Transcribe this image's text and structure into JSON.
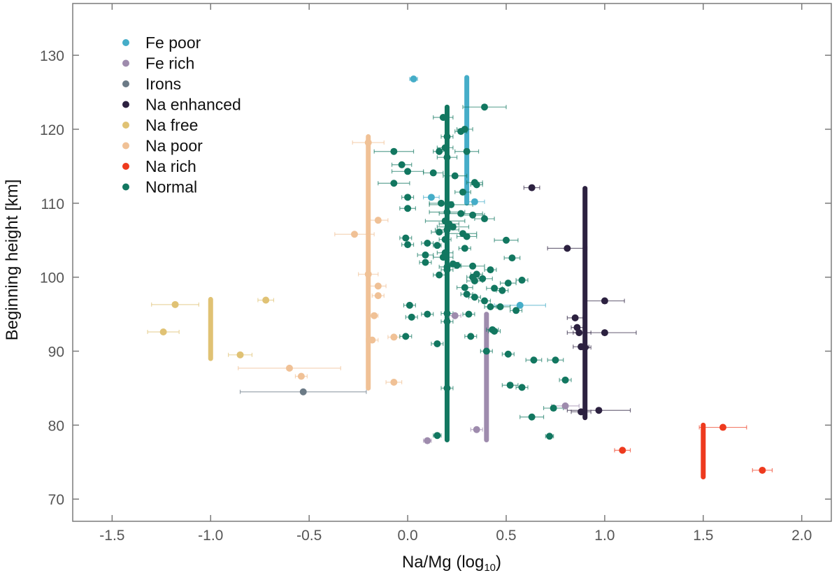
{
  "chart_data": {
    "type": "scatter",
    "xlabel_main": "Na/Mg (log",
    "xlabel_sub": "10",
    "xlabel_close": ")",
    "ylabel": "Beginning height [km]",
    "xlim": [
      -1.7,
      2.15
    ],
    "ylim": [
      67,
      137
    ],
    "xticks": [
      -1.5,
      -1.0,
      -0.5,
      0.0,
      0.5,
      1.0,
      1.5,
      2.0
    ],
    "xtick_labels": [
      "-1.5",
      "-1.0",
      "-0.5",
      "0.0",
      "0.5",
      "1.0",
      "1.5",
      "2.0"
    ],
    "yticks": [
      70,
      80,
      90,
      100,
      110,
      120,
      130
    ],
    "ytick_labels": [
      "70",
      "80",
      "90",
      "100",
      "110",
      "120",
      "130"
    ],
    "legend_position": "top-left",
    "series": [
      {
        "name": "Fe poor",
        "color": "#45adc8",
        "points": [
          [
            0.03,
            126.8,
            0.02
          ],
          [
            0.12,
            110.8,
            0.04
          ],
          [
            0.34,
            110.2,
            0.05
          ],
          [
            0.57,
            96.2,
            0.13
          ]
        ],
        "bar": {
          "x": 0.3,
          "ymin": 110,
          "ymax": 127
        }
      },
      {
        "name": "Fe rich",
        "color": "#9e8bad",
        "points": [
          [
            0.1,
            77.9,
            0.02
          ],
          [
            0.24,
            94.8,
            0.03
          ],
          [
            0.35,
            79.4,
            0.03
          ],
          [
            0.8,
            82.6,
            0.07
          ]
        ],
        "bar": {
          "x": 0.4,
          "ymin": 78,
          "ymax": 95
        }
      },
      {
        "name": "Irons",
        "color": "#6b7a86",
        "points": [
          [
            -0.53,
            84.5,
            0.32
          ]
        ],
        "bar": null
      },
      {
        "name": "Na enhanced",
        "color": "#2c2140",
        "points": [
          [
            0.63,
            112.1,
            0.04
          ],
          [
            0.81,
            103.9,
            0.1
          ],
          [
            0.85,
            94.5,
            0.04
          ],
          [
            0.86,
            93.2,
            0.03
          ],
          [
            0.87,
            92.5,
            0.06
          ],
          [
            0.88,
            90.6,
            0.04
          ],
          [
            0.9,
            90.5,
            0.03
          ],
          [
            1.0,
            96.8,
            0.1
          ],
          [
            1.0,
            92.5,
            0.16
          ],
          [
            0.88,
            81.8,
            0.05
          ],
          [
            0.97,
            82.0,
            0.16
          ]
        ],
        "bar": {
          "x": 0.9,
          "ymin": 81,
          "ymax": 112
        }
      },
      {
        "name": "Na free",
        "color": "#e0c274",
        "points": [
          [
            -1.18,
            96.3,
            0.12
          ],
          [
            -1.24,
            92.6,
            0.08
          ],
          [
            -0.72,
            96.9,
            0.04
          ],
          [
            -0.85,
            89.5,
            0.06
          ]
        ],
        "bar": {
          "x": -1.0,
          "ymin": 89,
          "ymax": 97
        }
      },
      {
        "name": "Na poor",
        "color": "#f0c196",
        "points": [
          [
            -0.2,
            118.2,
            0.08
          ],
          [
            -0.15,
            107.7,
            0.05
          ],
          [
            -0.27,
            105.8,
            0.1
          ],
          [
            -0.2,
            100.4,
            0.05
          ],
          [
            -0.15,
            98.8,
            0.04
          ],
          [
            -0.15,
            97.5,
            0.03
          ],
          [
            -0.17,
            94.8,
            0.02
          ],
          [
            -0.18,
            91.5,
            0.03
          ],
          [
            -0.07,
            91.9,
            0.03
          ],
          [
            -0.07,
            85.8,
            0.04
          ],
          [
            -0.6,
            87.7,
            0.26
          ],
          [
            -0.54,
            86.6,
            0.03
          ]
        ],
        "bar": {
          "x": -0.2,
          "ymin": 85,
          "ymax": 119
        }
      },
      {
        "name": "Na rich",
        "color": "#ee3a1e",
        "points": [
          [
            1.6,
            79.7,
            0.12
          ],
          [
            1.09,
            76.6,
            0.04
          ],
          [
            1.8,
            73.9,
            0.05
          ]
        ],
        "bar": {
          "x": 1.5,
          "ymin": 73,
          "ymax": 80
        }
      },
      {
        "name": "Normal",
        "color": "#127760",
        "points": [
          [
            0.39,
            123.0,
            0.11
          ],
          [
            0.18,
            121.6,
            0.05
          ],
          [
            0.29,
            120.0,
            0.04
          ],
          [
            0.27,
            119.7,
            0.03
          ],
          [
            0.2,
            119.0,
            0.03
          ],
          [
            -0.07,
            117.0,
            0.1
          ],
          [
            0.19,
            117.5,
            0.04
          ],
          [
            0.16,
            117.0,
            0.03
          ],
          [
            0.3,
            117.0,
            0.06
          ],
          [
            0.2,
            116.2,
            0.05
          ],
          [
            -0.03,
            115.2,
            0.05
          ],
          [
            0.0,
            114.3,
            0.08
          ],
          [
            0.13,
            114.1,
            0.05
          ],
          [
            0.24,
            113.7,
            0.06
          ],
          [
            0.34,
            112.8,
            0.04
          ],
          [
            0.35,
            112.5,
            0.03
          ],
          [
            -0.07,
            112.7,
            0.08
          ],
          [
            0.28,
            111.5,
            0.04
          ],
          [
            0.0,
            110.8,
            0.03
          ],
          [
            0.17,
            110.0,
            0.06
          ],
          [
            0.22,
            109.8,
            0.11
          ],
          [
            0.0,
            109.3,
            0.04
          ],
          [
            0.2,
            108.8,
            0.09
          ],
          [
            0.27,
            108.6,
            0.11
          ],
          [
            0.33,
            108.4,
            0.06
          ],
          [
            0.39,
            107.9,
            0.05
          ],
          [
            0.19,
            107.6,
            0.1
          ],
          [
            0.21,
            107.2,
            0.05
          ],
          [
            0.23,
            106.8,
            0.08
          ],
          [
            0.2,
            106.4,
            0.06
          ],
          [
            0.16,
            106.1,
            0.04
          ],
          [
            0.28,
            105.9,
            0.07
          ],
          [
            0.3,
            105.5,
            0.05
          ],
          [
            0.19,
            105.1,
            0.03
          ],
          [
            -0.01,
            105.3,
            0.03
          ],
          [
            0.5,
            105.0,
            0.06
          ],
          [
            0.1,
            104.6,
            0.03
          ],
          [
            0.15,
            104.3,
            0.02
          ],
          [
            0.0,
            104.4,
            0.03
          ],
          [
            0.29,
            103.9,
            0.03
          ],
          [
            0.19,
            103.3,
            0.04
          ],
          [
            0.18,
            102.7,
            0.05
          ],
          [
            0.09,
            103.0,
            0.04
          ],
          [
            0.09,
            102.0,
            0.03
          ],
          [
            0.23,
            101.8,
            0.03
          ],
          [
            0.53,
            102.6,
            0.04
          ],
          [
            0.2,
            101.4,
            0.04
          ],
          [
            0.25,
            101.6,
            0.02
          ],
          [
            0.33,
            101.5,
            0.06
          ],
          [
            0.2,
            101.0,
            0.03
          ],
          [
            0.42,
            101.0,
            0.03
          ],
          [
            0.35,
            100.4,
            0.03
          ],
          [
            0.33,
            100.0,
            0.03
          ],
          [
            0.16,
            100.3,
            0.03
          ],
          [
            0.38,
            99.8,
            0.05
          ],
          [
            0.34,
            99.5,
            0.04
          ],
          [
            0.58,
            99.6,
            0.03
          ],
          [
            0.51,
            99.2,
            0.04
          ],
          [
            0.44,
            98.5,
            0.04
          ],
          [
            0.29,
            98.6,
            0.04
          ],
          [
            0.48,
            98.2,
            0.03
          ],
          [
            0.3,
            97.7,
            0.03
          ],
          [
            0.34,
            97.3,
            0.03
          ],
          [
            0.39,
            96.8,
            0.03
          ],
          [
            0.47,
            96.0,
            0.05
          ],
          [
            0.01,
            96.2,
            0.03
          ],
          [
            0.42,
            96.0,
            0.03
          ],
          [
            0.55,
            95.5,
            0.03
          ],
          [
            0.2,
            95.1,
            0.03
          ],
          [
            0.31,
            95.0,
            0.03
          ],
          [
            0.1,
            95.0,
            0.03
          ],
          [
            0.02,
            94.6,
            0.03
          ],
          [
            0.2,
            94.0,
            0.03
          ],
          [
            0.43,
            92.9,
            0.03
          ],
          [
            0.44,
            92.7,
            0.03
          ],
          [
            -0.01,
            92.0,
            0.03
          ],
          [
            0.32,
            92.0,
            0.03
          ],
          [
            0.15,
            91.0,
            0.03
          ],
          [
            0.4,
            90.0,
            0.03
          ],
          [
            0.51,
            89.6,
            0.03
          ],
          [
            0.64,
            88.8,
            0.04
          ],
          [
            0.75,
            88.8,
            0.04
          ],
          [
            0.8,
            86.1,
            0.03
          ],
          [
            0.52,
            85.4,
            0.04
          ],
          [
            0.58,
            85.1,
            0.03
          ],
          [
            0.2,
            85.0,
            0.03
          ],
          [
            0.74,
            82.3,
            0.05
          ],
          [
            0.63,
            81.1,
            0.06
          ],
          [
            0.72,
            78.5,
            0.02
          ],
          [
            0.15,
            78.6,
            0.02
          ]
        ],
        "bar": {
          "x": 0.2,
          "ymin": 78,
          "ymax": 123
        }
      }
    ]
  }
}
